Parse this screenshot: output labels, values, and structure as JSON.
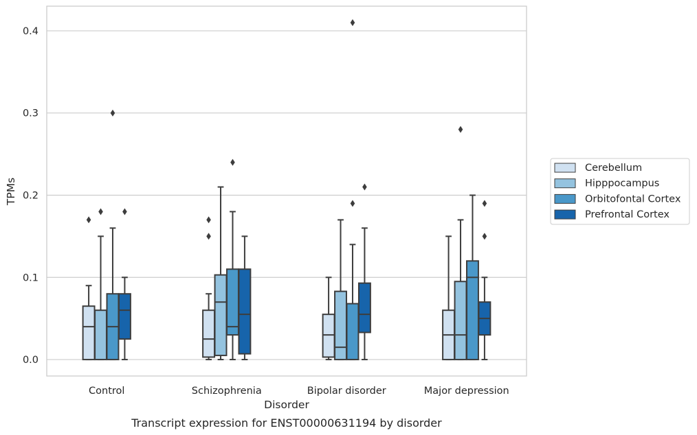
{
  "chart_data": {
    "type": "box",
    "title": "",
    "caption": "Transcript expression for ENST00000631194 by disorder",
    "xlabel": "Disorder",
    "ylabel": "TPMs",
    "ylim": [
      -0.02,
      0.43
    ],
    "yticks": [
      "0.0",
      "0.1",
      "0.2",
      "0.3",
      "0.4"
    ],
    "ytick_values": [
      0.0,
      0.1,
      0.2,
      0.3,
      0.4
    ],
    "grid": "horizontal",
    "legend_position": "outside-right",
    "categories": [
      "Control",
      "Schizophrenia",
      "Bipolar disorder",
      "Major depression"
    ],
    "series": [
      {
        "name": "Cerebellum",
        "color": "#d0e1f1",
        "boxes": [
          {
            "low": 0.0,
            "q1": 0.0,
            "median": 0.04,
            "q3": 0.065,
            "high": 0.09,
            "outliers": [
              0.17
            ]
          },
          {
            "low": 0.0,
            "q1": 0.003,
            "median": 0.025,
            "q3": 0.06,
            "high": 0.08,
            "outliers": [
              0.15,
              0.17
            ]
          },
          {
            "low": 0.0,
            "q1": 0.003,
            "median": 0.03,
            "q3": 0.055,
            "high": 0.1,
            "outliers": []
          },
          {
            "low": 0.0,
            "q1": 0.0,
            "median": 0.03,
            "q3": 0.06,
            "high": 0.15,
            "outliers": []
          }
        ]
      },
      {
        "name": "Hipppocampus",
        "color": "#94c3df",
        "boxes": [
          {
            "low": 0.0,
            "q1": 0.0,
            "median": 0.0,
            "q3": 0.06,
            "high": 0.15,
            "outliers": [
              0.18
            ]
          },
          {
            "low": 0.0,
            "q1": 0.005,
            "median": 0.07,
            "q3": 0.103,
            "high": 0.21,
            "outliers": []
          },
          {
            "low": 0.0,
            "q1": 0.0,
            "median": 0.015,
            "q3": 0.083,
            "high": 0.17,
            "outliers": []
          },
          {
            "low": 0.0,
            "q1": 0.0,
            "median": 0.03,
            "q3": 0.095,
            "high": 0.17,
            "outliers": [
              0.28
            ]
          }
        ]
      },
      {
        "name": "Orbitofontal Cortex",
        "color": "#4a98c9",
        "boxes": [
          {
            "low": 0.0,
            "q1": 0.0,
            "median": 0.04,
            "q3": 0.08,
            "high": 0.16,
            "outliers": [
              0.3
            ]
          },
          {
            "low": 0.0,
            "q1": 0.03,
            "median": 0.04,
            "q3": 0.11,
            "high": 0.18,
            "outliers": [
              0.24
            ]
          },
          {
            "low": 0.0,
            "q1": 0.0,
            "median": 0.0,
            "q3": 0.068,
            "high": 0.14,
            "outliers": [
              0.19,
              0.41
            ]
          },
          {
            "low": 0.0,
            "q1": 0.0,
            "median": 0.1,
            "q3": 0.12,
            "high": 0.2,
            "outliers": []
          }
        ]
      },
      {
        "name": "Prefrontal Cortex",
        "color": "#1764ab",
        "boxes": [
          {
            "low": 0.0,
            "q1": 0.025,
            "median": 0.06,
            "q3": 0.08,
            "high": 0.1,
            "outliers": [
              0.18
            ]
          },
          {
            "low": 0.0,
            "q1": 0.007,
            "median": 0.055,
            "q3": 0.11,
            "high": 0.15,
            "outliers": []
          },
          {
            "low": 0.0,
            "q1": 0.033,
            "median": 0.055,
            "q3": 0.093,
            "high": 0.16,
            "outliers": [
              0.21
            ]
          },
          {
            "low": 0.0,
            "q1": 0.03,
            "median": 0.05,
            "q3": 0.07,
            "high": 0.1,
            "outliers": [
              0.15,
              0.19
            ]
          }
        ]
      }
    ]
  }
}
